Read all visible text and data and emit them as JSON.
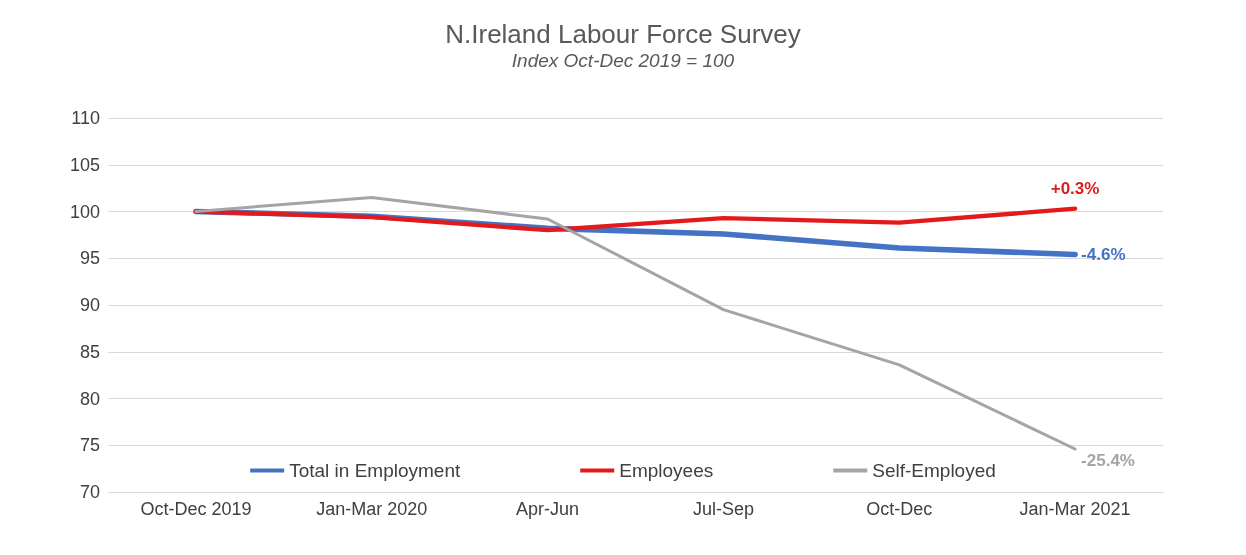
{
  "chart_data": {
    "type": "line",
    "title": "N.Ireland Labour Force Survey",
    "subtitle": "Index Oct-Dec 2019 = 100",
    "categories": [
      "Oct-Dec 2019",
      "Jan-Mar 2020",
      "Apr-Jun",
      "Jul-Sep",
      "Oct-Dec",
      "Jan-Mar 2021"
    ],
    "series": [
      {
        "name": "Total in Employment",
        "color": "#4472c4",
        "values": [
          100,
          99.5,
          98.2,
          97.6,
          96.1,
          95.4
        ]
      },
      {
        "name": "Employees",
        "color": "#e31a1c",
        "values": [
          100,
          99.4,
          98,
          99.3,
          98.8,
          100.3
        ]
      },
      {
        "name": "Self-Employed",
        "color": "#a5a5a5",
        "values": [
          100,
          101.5,
          99.2,
          89.5,
          83.6,
          74.6
        ]
      }
    ],
    "annotations": [
      {
        "text": "+0.3%",
        "x": "Jan-Mar 2021",
        "y": 100.3
      },
      {
        "text": "-4.6%",
        "x": "Jan-Mar 2021",
        "y": 95.4
      },
      {
        "text": "-25.4%",
        "x": "Jan-Mar 2021",
        "y": 74.6
      }
    ],
    "ylim": [
      70,
      110
    ],
    "yticks": [
      70,
      75,
      80,
      85,
      90,
      95,
      100,
      105,
      110
    ],
    "grid": "y",
    "legend": "bottom",
    "marker": "none",
    "line_style": "solid"
  }
}
